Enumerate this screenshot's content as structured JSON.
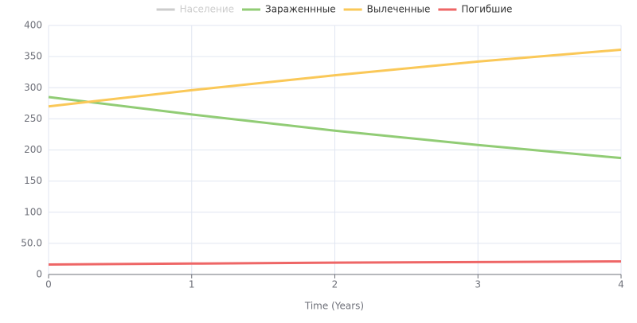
{
  "chart_data": {
    "type": "line",
    "x_label": "Time (Years)",
    "x": [
      0,
      1,
      2,
      3,
      4
    ],
    "series": [
      {
        "name": "Население",
        "color": "#cccccc",
        "hidden": true,
        "values": [
          null,
          null,
          null,
          null,
          null
        ]
      },
      {
        "name": "Зараженнные",
        "color": "#91cc75",
        "values": [
          285,
          257,
          231,
          208,
          187
        ]
      },
      {
        "name": "Вылеченные",
        "color": "#fac858",
        "values": [
          270,
          296,
          320,
          342,
          361
        ]
      },
      {
        "name": "Погибшие",
        "color": "#ee6666",
        "values": [
          16,
          17.5,
          19,
          20,
          21
        ]
      }
    ],
    "xlim": [
      0,
      4
    ],
    "xticks": [
      0,
      1,
      2,
      3,
      4
    ],
    "ylim": [
      0,
      400
    ],
    "yticks": [
      0,
      {
        "value": 50,
        "label": "50.0"
      },
      100,
      150,
      200,
      250,
      300,
      350,
      400
    ],
    "grid": true,
    "legend": "top"
  }
}
